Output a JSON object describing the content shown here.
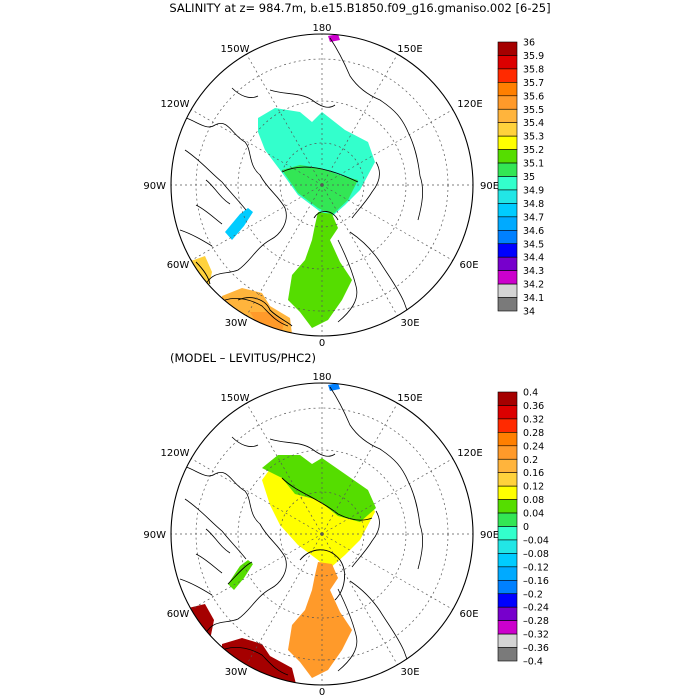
{
  "figure": {
    "title": "SALINITY at z= 984.7m, b.e15.B1850.f09_g16.gmaniso.002 [6-25]",
    "diff_title": "(MODEL – LEVITUS/PHC2)"
  },
  "maps": [
    {
      "name": "salinity",
      "longitude_labels": [
        "180",
        "150E",
        "120E",
        "90E",
        "60E",
        "30E",
        "0",
        "30W",
        "60W",
        "90W",
        "120W",
        "150W"
      ],
      "colorbar": {
        "labels": [
          "36",
          "35.9",
          "35.8",
          "35.7",
          "35.6",
          "35.5",
          "35.4",
          "35.3",
          "35.2",
          "35.1",
          "35",
          "34.9",
          "34.8",
          "34.7",
          "34.6",
          "34.5",
          "34.4",
          "34.3",
          "34.2",
          "34.1",
          "34"
        ],
        "colors": [
          "#a50000",
          "#dc0000",
          "#ff2a00",
          "#ff7f00",
          "#ff9a2a",
          "#ffb43c",
          "#ffd23c",
          "#ffff00",
          "#55dd00",
          "#33e655",
          "#33ffcc",
          "#22e6e6",
          "#00ccff",
          "#00aaff",
          "#0080ff",
          "#0000ff",
          "#7700cc",
          "#cc00cc",
          "#d4d4d4",
          "#7a7a7a"
        ]
      },
      "field_colors": {
        "pacific": "#33ffcc",
        "pacific_lobe": "#33e655",
        "atlantic_channel": "#55dd00",
        "baffin": "#00ccff",
        "labrador": "#ffd23c",
        "irminger_a": "#ffb43c",
        "irminger_b": "#ff9a2a",
        "bering": "#cc00cc"
      }
    },
    {
      "name": "difference",
      "longitude_labels": [
        "180",
        "150E",
        "120E",
        "90E",
        "60E",
        "30E",
        "0",
        "30W",
        "60W",
        "90W",
        "120W",
        "150W"
      ],
      "colorbar": {
        "labels": [
          "0.4",
          "0.36",
          "0.32",
          "0.28",
          "0.24",
          "0.2",
          "0.16",
          "0.12",
          "0.08",
          "0.04",
          "0",
          "–0.04",
          "–0.08",
          "–0.12",
          "–0.16",
          "–0.2",
          "–0.24",
          "–0.28",
          "–0.32",
          "–0.36",
          "–0.4"
        ],
        "colors": [
          "#a50000",
          "#dc0000",
          "#ff2a00",
          "#ff7f00",
          "#ff9a2a",
          "#ffb43c",
          "#ffd23c",
          "#ffff00",
          "#55dd00",
          "#33e655",
          "#33ffcc",
          "#22e6e6",
          "#00ccff",
          "#00aaff",
          "#0080ff",
          "#0000ff",
          "#7700cc",
          "#cc00cc",
          "#d4d4d4",
          "#7a7a7a"
        ]
      },
      "field_colors": {
        "pacific": "#ffff00",
        "pacific_lobe": "#55dd00",
        "atlantic_channel": "#ff9a2a",
        "baffin": "#55dd00",
        "labrador": "#a50000",
        "irminger_a": "#a50000",
        "irminger_b": "#a50000",
        "bering": "#0080ff"
      }
    }
  ]
}
